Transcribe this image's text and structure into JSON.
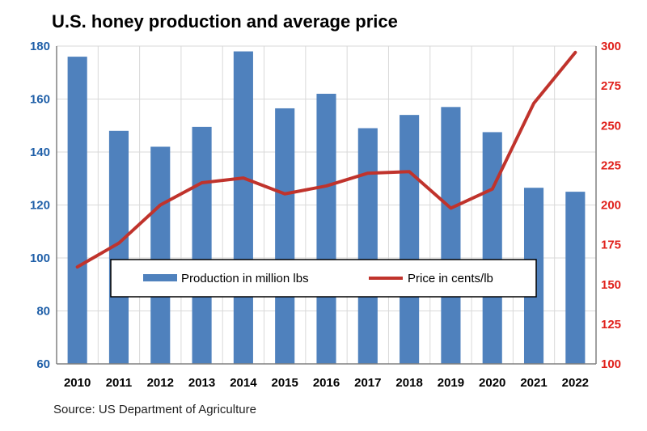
{
  "title": "U.S. honey production and average price",
  "source": "Source: US Department of Agriculture",
  "colors": {
    "bar": "#4f81bd",
    "line": "#c0332c",
    "left_axis": "#1f5fa8",
    "right_axis": "#e0201b",
    "grid": "#d9d9d9"
  },
  "chart_data": {
    "type": "bar",
    "title": "U.S. honey production and average price",
    "categories": [
      "2010",
      "2011",
      "2012",
      "2013",
      "2014",
      "2015",
      "2016",
      "2017",
      "2018",
      "2019",
      "2020",
      "2021",
      "2022"
    ],
    "series": [
      {
        "name": "Production in million lbs",
        "type": "bar",
        "axis": "left",
        "values": [
          176,
          148,
          142,
          149.5,
          178,
          156.5,
          162,
          149,
          154,
          157,
          147.5,
          126.5,
          125
        ]
      },
      {
        "name": "Price in cents/lb",
        "type": "line",
        "axis": "right",
        "values": [
          161,
          176,
          200,
          214,
          217,
          207,
          212,
          220,
          221,
          198,
          210,
          264,
          296
        ]
      }
    ],
    "y_left": {
      "ylim": [
        60,
        180
      ],
      "ticks": [
        "60",
        "80",
        "100",
        "120",
        "140",
        "160",
        "180"
      ]
    },
    "y_right": {
      "ylim": [
        100,
        300
      ],
      "ticks": [
        "100",
        "125",
        "150",
        "175",
        "200",
        "225",
        "250",
        "275",
        "300"
      ]
    },
    "grid": true,
    "legend_placement": "center"
  }
}
